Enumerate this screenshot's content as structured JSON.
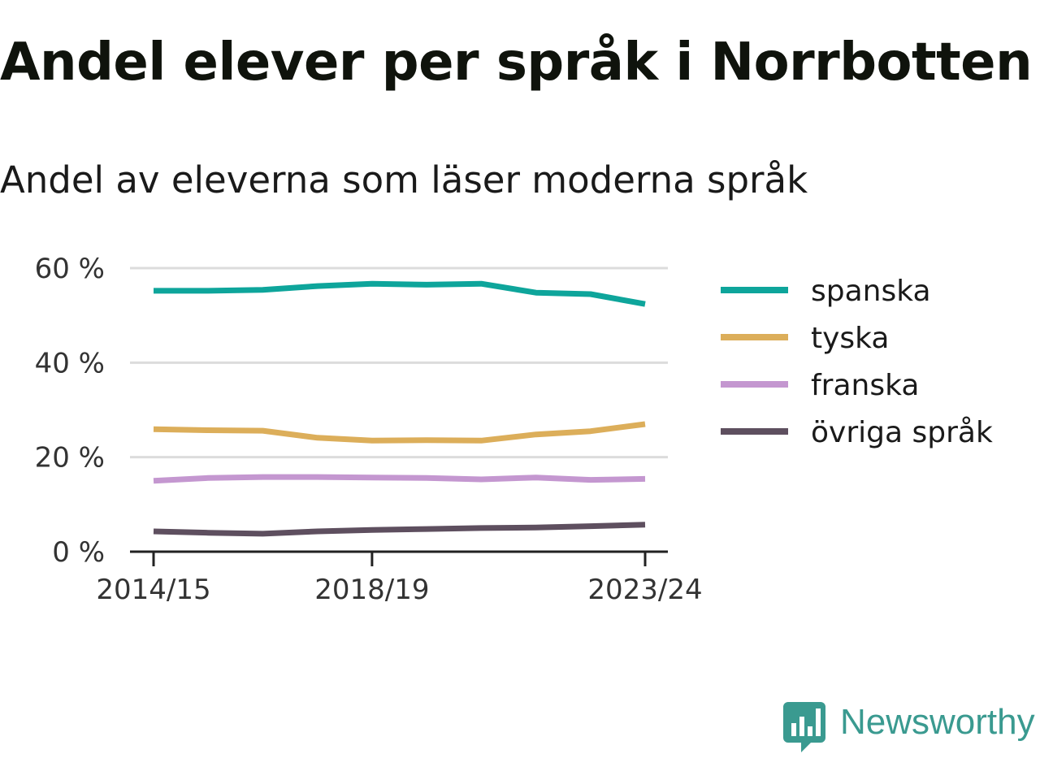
{
  "title": "Andel elever per språk i Norrbotten",
  "subtitle": "Andel av eleverna som läser moderna språk",
  "chart_data": {
    "type": "line",
    "x": [
      "2014/15",
      "2015/16",
      "2016/17",
      "2017/18",
      "2018/19",
      "2019/20",
      "2020/21",
      "2021/22",
      "2022/23",
      "2023/24"
    ],
    "x_tick_labels": [
      "2014/15",
      "2018/19",
      "2023/24"
    ],
    "ylim": [
      0,
      60
    ],
    "y_ticks": [
      0,
      20,
      40,
      60
    ],
    "y_tick_labels": [
      "0 %",
      "20 %",
      "40 %",
      "60 %"
    ],
    "grid": true,
    "legend_position": "right",
    "series": [
      {
        "name": "spanska",
        "color": "#0ea59b",
        "values": [
          55.2,
          55.2,
          55.4,
          56.2,
          56.7,
          56.5,
          56.7,
          54.8,
          54.5,
          52.4
        ]
      },
      {
        "name": "tyska",
        "color": "#dcae5a",
        "values": [
          25.9,
          25.7,
          25.6,
          24.1,
          23.5,
          23.6,
          23.5,
          24.8,
          25.5,
          27.0
        ]
      },
      {
        "name": "franska",
        "color": "#c497d0",
        "values": [
          15.0,
          15.6,
          15.8,
          15.8,
          15.7,
          15.6,
          15.3,
          15.7,
          15.2,
          15.4
        ]
      },
      {
        "name": "övriga språk",
        "color": "#5e4f5f",
        "values": [
          4.3,
          4.0,
          3.8,
          4.3,
          4.6,
          4.8,
          5.0,
          5.1,
          5.4,
          5.7
        ]
      }
    ]
  },
  "brand": {
    "name": "Newsworthy",
    "icon": "newsworthy-logo-icon",
    "color": "#3a9a90"
  }
}
